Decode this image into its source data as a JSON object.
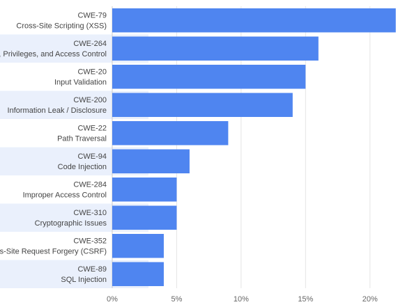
{
  "chart_data": {
    "type": "bar",
    "orientation": "horizontal",
    "title": "",
    "xlabel": "",
    "ylabel": "",
    "categories": [
      {
        "id": "CWE-79",
        "name": "Cross-Site Scripting (XSS)"
      },
      {
        "id": "CWE-264",
        "name": "Permissions, Privileges, and Access Control"
      },
      {
        "id": "CWE-20",
        "name": "Input Validation"
      },
      {
        "id": "CWE-200",
        "name": "Information Leak / Disclosure"
      },
      {
        "id": "CWE-22",
        "name": "Path Traversal"
      },
      {
        "id": "CWE-94",
        "name": "Code Injection"
      },
      {
        "id": "CWE-284",
        "name": "Improper Access Control"
      },
      {
        "id": "CWE-310",
        "name": "Cryptographic Issues"
      },
      {
        "id": "CWE-352",
        "name": "Cross-Site Request Forgery (CSRF)"
      },
      {
        "id": "CWE-89",
        "name": "SQL Injection"
      }
    ],
    "values": [
      22,
      16,
      15,
      14,
      9,
      6,
      5,
      5,
      4,
      4
    ],
    "xlim": [
      0,
      22.5
    ],
    "x_ticks": [
      0,
      5,
      10,
      15,
      20
    ],
    "x_tick_labels": [
      "0%",
      "5%",
      "10%",
      "15%",
      "20%"
    ],
    "grid": true,
    "legend": "none",
    "colors": {
      "bar": "#4f85f0",
      "band": "#eaf0fc",
      "grid": "#e5e5e5",
      "axis": "#cccccc"
    }
  }
}
